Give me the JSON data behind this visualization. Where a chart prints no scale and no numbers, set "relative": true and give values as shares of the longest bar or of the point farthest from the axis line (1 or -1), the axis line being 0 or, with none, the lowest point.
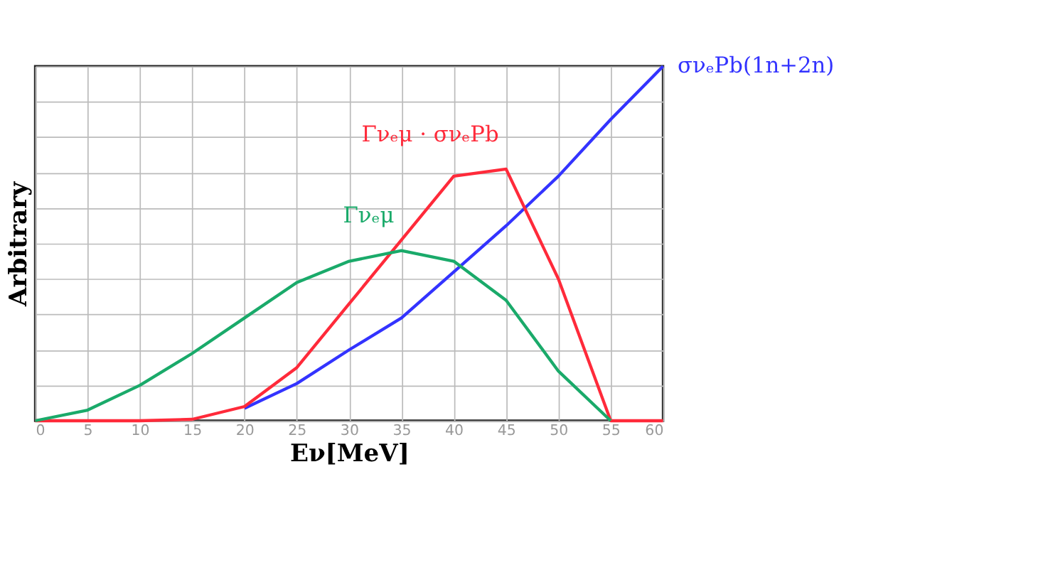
{
  "chart_data": {
    "type": "line",
    "relative": true,
    "xlabel": "Eν[MeV]",
    "ylabel": "Arbitrary",
    "x": [
      0,
      5,
      10,
      15,
      20,
      25,
      30,
      35,
      40,
      45,
      50,
      55,
      60
    ],
    "xlim": [
      0,
      60
    ],
    "xticks": [
      0,
      5,
      10,
      15,
      20,
      25,
      30,
      35,
      40,
      45,
      50,
      55,
      60
    ],
    "grid": true,
    "legend": false,
    "marker": "none",
    "line_style": "solid",
    "series": [
      {
        "name": "σνₑPb(1n+2n)",
        "color": "#3333ff",
        "values": [
          null,
          null,
          null,
          null,
          0.035,
          0.105,
          0.2,
          0.29,
          0.42,
          0.55,
          0.69,
          0.85,
          1
        ]
      },
      {
        "name": "Γνₑμ · σνₑPb",
        "color": "#ff2a3a",
        "values": [
          0,
          0,
          0,
          0.004,
          0.04,
          0.15,
          0.33,
          0.51,
          0.69,
          0.71,
          0.4,
          0,
          0
        ]
      },
      {
        "name": "Γνₑμ",
        "color": "#1aaa6a",
        "values": [
          0,
          0.03,
          0.1,
          0.19,
          0.29,
          0.39,
          0.45,
          0.48,
          0.45,
          0.34,
          0.14,
          0,
          null
        ]
      }
    ]
  }
}
